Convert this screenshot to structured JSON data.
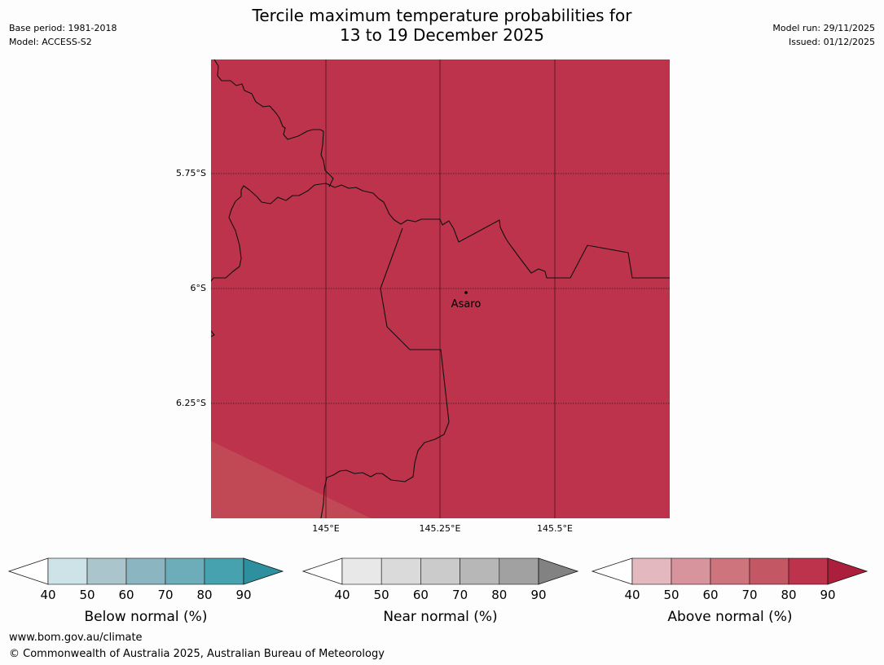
{
  "title": {
    "line1": "Tercile maximum temperature probabilities for",
    "line2": "13 to 19 December 2025"
  },
  "meta_left": {
    "base_period": "Base period: 1981-2018",
    "model": "Model: ACCESS-S2"
  },
  "meta_right": {
    "model_run": "Model run: 29/11/2025",
    "issued": "Issued: 01/12/2025"
  },
  "map": {
    "place_label": "Asaro",
    "lat_labels": [
      "5.75°S",
      "6°S",
      "6.25°S"
    ],
    "lon_labels": [
      "145°E",
      "145.25°E",
      "145.5°E"
    ],
    "fill_color": "#bc334b",
    "fill_color_secondary": "#c14855"
  },
  "legend": [
    {
      "label": "Below normal (%)",
      "ticks": [
        "40",
        "50",
        "60",
        "70",
        "80",
        "90"
      ],
      "colors": [
        "#cde3e8",
        "#aac6cc",
        "#8bb5c1",
        "#6dadba",
        "#47a2af",
        "#2e8f9f"
      ]
    },
    {
      "label": "Near normal (%)",
      "ticks": [
        "40",
        "50",
        "60",
        "70",
        "80",
        "90"
      ],
      "colors": [
        "#e8e8e8",
        "#dadada",
        "#cbcbcb",
        "#b7b7b7",
        "#a1a1a1",
        "#828282"
      ]
    },
    {
      "label": "Above normal (%)",
      "ticks": [
        "40",
        "50",
        "60",
        "70",
        "80",
        "90"
      ],
      "colors": [
        "#e3b9bf",
        "#d7949c",
        "#cd747d",
        "#c45764",
        "#bc334b",
        "#ac1f3c"
      ]
    }
  ],
  "footer": {
    "url": "www.bom.gov.au/climate",
    "copyright": "© Commonwealth of Australia 2025, Australian Bureau of Meteorology"
  }
}
